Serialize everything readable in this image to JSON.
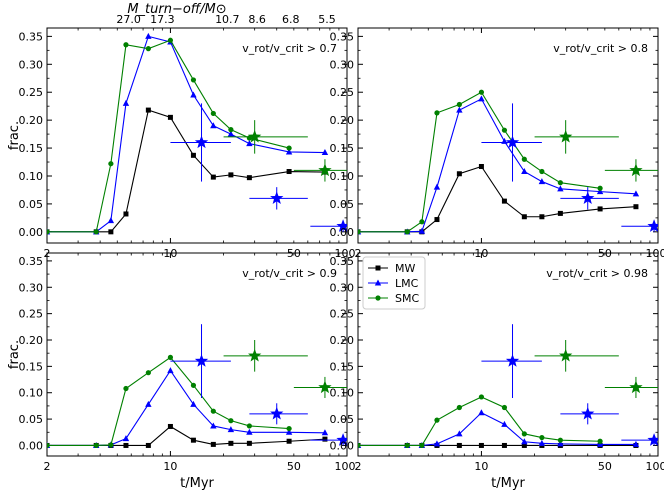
{
  "figure": {
    "top_axis_label": "M_turn−off/M⊙",
    "top_ticks": [
      {
        "t": 5.8,
        "label": "27.0"
      },
      {
        "t": 9.0,
        "label": "17.3"
      },
      {
        "t": 21.0,
        "label": "10.7"
      },
      {
        "t": 31.0,
        "label": "8.6"
      },
      {
        "t": 48.0,
        "label": "6.8"
      },
      {
        "t": 77.0,
        "label": "5.5"
      }
    ],
    "legend": [
      {
        "name": "MW",
        "color": "#000000",
        "marker": "square"
      },
      {
        "name": "LMC",
        "color": "#0000ff",
        "marker": "triangle"
      },
      {
        "name": "SMC",
        "color": "#008000",
        "marker": "circle"
      }
    ]
  },
  "chart_data": [
    {
      "type": "line",
      "panel": "top-left",
      "annotation": "v_rot/v_crit > 0.7",
      "xlabel": "",
      "ylabel": "frac.",
      "xscale": "log",
      "xlim": [
        2,
        100
      ],
      "ylim": [
        -0.02,
        0.365
      ],
      "xticks": [
        "2",
        "10",
        "50",
        "100"
      ],
      "yticks": [
        "0.00",
        "0.05",
        "0.10",
        "0.15",
        "0.20",
        "0.25",
        "0.30",
        "0.35"
      ],
      "series": [
        {
          "name": "MW",
          "color": "#000000",
          "marker": "square",
          "x": [
            2,
            3.8,
            4.6,
            5.6,
            7.5,
            10,
            13.5,
            17.5,
            22,
            28,
            47,
            75
          ],
          "y": [
            0,
            0,
            0,
            0.032,
            0.218,
            0.205,
            0.137,
            0.098,
            0.102,
            0.097,
            0.108,
            0.107
          ]
        },
        {
          "name": "LMC",
          "color": "#0000ff",
          "marker": "triangle",
          "x": [
            2,
            3.8,
            4.6,
            5.6,
            7.5,
            10,
            13.5,
            17.5,
            22,
            28,
            47,
            75
          ],
          "y": [
            0,
            0,
            0.02,
            0.23,
            0.35,
            0.34,
            0.245,
            0.19,
            0.175,
            0.158,
            0.143,
            0.142
          ]
        },
        {
          "name": "SMC",
          "color": "#008000",
          "marker": "circle",
          "x": [
            2,
            3.8,
            4.6,
            5.6,
            7.5,
            10,
            13.5,
            17.5,
            22,
            28,
            47
          ],
          "y": [
            0,
            0,
            0.122,
            0.335,
            0.328,
            0.343,
            0.272,
            0.212,
            0.183,
            0.168,
            0.15
          ]
        }
      ],
      "observations": [
        {
          "color": "#0000ff",
          "x": 15,
          "xerr": [
            10,
            22
          ],
          "y": 0.16,
          "yerr": [
            0.09,
            0.23
          ]
        },
        {
          "color": "#0000ff",
          "x": 40,
          "xerr": [
            28,
            60
          ],
          "y": 0.06,
          "yerr": [
            0.04,
            0.08
          ]
        },
        {
          "color": "#0000ff",
          "x": 95,
          "xerr": [
            62,
            100
          ],
          "y": 0.01,
          "yerr": [
            0.0,
            0.02
          ]
        },
        {
          "color": "#008000",
          "x": 30,
          "xerr": [
            20,
            60
          ],
          "y": 0.17,
          "yerr": [
            0.14,
            0.2
          ]
        },
        {
          "color": "#008000",
          "x": 75,
          "xerr": [
            50,
            100
          ],
          "y": 0.11,
          "yerr": [
            0.09,
            0.13
          ]
        }
      ]
    },
    {
      "type": "line",
      "panel": "top-right",
      "annotation": "v_rot/v_crit > 0.8",
      "xlabel": "",
      "ylabel": "",
      "xscale": "log",
      "xlim": [
        2,
        100
      ],
      "ylim": [
        -0.02,
        0.365
      ],
      "xticks": [
        "2",
        "10",
        "50",
        "100"
      ],
      "yticks": [
        "0.00",
        "0.05",
        "0.10",
        "0.15",
        "0.20",
        "0.25",
        "0.30",
        "0.35"
      ],
      "series": [
        {
          "name": "MW",
          "color": "#000000",
          "marker": "square",
          "x": [
            2,
            3.8,
            4.6,
            5.6,
            7.5,
            10,
            13.5,
            17.5,
            22,
            28,
            47,
            75
          ],
          "y": [
            0,
            0,
            0,
            0.022,
            0.104,
            0.117,
            0.055,
            0.027,
            0.027,
            0.033,
            0.041,
            0.045
          ]
        },
        {
          "name": "LMC",
          "color": "#0000ff",
          "marker": "triangle",
          "x": [
            2,
            3.8,
            4.6,
            5.6,
            7.5,
            10,
            13.5,
            17.5,
            22,
            28,
            47,
            75
          ],
          "y": [
            0,
            0,
            0.001,
            0.08,
            0.218,
            0.238,
            0.162,
            0.108,
            0.09,
            0.077,
            0.072,
            0.068
          ]
        },
        {
          "name": "SMC",
          "color": "#008000",
          "marker": "circle",
          "x": [
            2,
            3.8,
            4.6,
            5.6,
            7.5,
            10,
            13.5,
            17.5,
            22,
            28,
            47
          ],
          "y": [
            0,
            0,
            0.018,
            0.213,
            0.228,
            0.25,
            0.182,
            0.13,
            0.108,
            0.088,
            0.078
          ]
        }
      ],
      "observations": [
        {
          "color": "#0000ff",
          "x": 15,
          "xerr": [
            10,
            22
          ],
          "y": 0.16,
          "yerr": [
            0.09,
            0.23
          ]
        },
        {
          "color": "#0000ff",
          "x": 40,
          "xerr": [
            28,
            60
          ],
          "y": 0.06,
          "yerr": [
            0.04,
            0.08
          ]
        },
        {
          "color": "#0000ff",
          "x": 95,
          "xerr": [
            62,
            100
          ],
          "y": 0.01,
          "yerr": [
            0.0,
            0.02
          ]
        },
        {
          "color": "#008000",
          "x": 30,
          "xerr": [
            20,
            60
          ],
          "y": 0.17,
          "yerr": [
            0.14,
            0.2
          ]
        },
        {
          "color": "#008000",
          "x": 75,
          "xerr": [
            50,
            100
          ],
          "y": 0.11,
          "yerr": [
            0.09,
            0.13
          ]
        }
      ]
    },
    {
      "type": "line",
      "panel": "bottom-left",
      "annotation": "v_rot/v_crit > 0.9",
      "xlabel": "t/Myr",
      "ylabel": "frac.",
      "xscale": "log",
      "xlim": [
        2,
        100
      ],
      "ylim": [
        -0.02,
        0.365
      ],
      "xticks": [
        "2",
        "10",
        "50",
        "100"
      ],
      "yticks": [
        "0.00",
        "0.05",
        "0.10",
        "0.15",
        "0.20",
        "0.25",
        "0.30",
        "0.35"
      ],
      "series": [
        {
          "name": "MW",
          "color": "#000000",
          "marker": "square",
          "x": [
            2,
            3.8,
            4.6,
            5.6,
            7.5,
            10,
            13.5,
            17.5,
            22,
            28,
            47,
            75
          ],
          "y": [
            0,
            0,
            0,
            0,
            0,
            0.036,
            0.01,
            0.002,
            0.004,
            0.004,
            0.008,
            0.012
          ]
        },
        {
          "name": "LMC",
          "color": "#0000ff",
          "marker": "triangle",
          "x": [
            2,
            3.8,
            4.6,
            5.6,
            7.5,
            10,
            13.5,
            17.5,
            22,
            28,
            47,
            75
          ],
          "y": [
            0,
            0,
            0.001,
            0.013,
            0.078,
            0.142,
            0.078,
            0.037,
            0.03,
            0.025,
            0.025,
            0.024
          ]
        },
        {
          "name": "SMC",
          "color": "#008000",
          "marker": "circle",
          "x": [
            2,
            3.8,
            4.6,
            5.6,
            7.5,
            10,
            13.5,
            17.5,
            22,
            28,
            47
          ],
          "y": [
            0,
            0,
            0.001,
            0.108,
            0.138,
            0.167,
            0.114,
            0.065,
            0.047,
            0.037,
            0.032
          ]
        }
      ],
      "observations": [
        {
          "color": "#0000ff",
          "x": 15,
          "xerr": [
            10,
            22
          ],
          "y": 0.16,
          "yerr": [
            0.09,
            0.23
          ]
        },
        {
          "color": "#0000ff",
          "x": 40,
          "xerr": [
            28,
            60
          ],
          "y": 0.06,
          "yerr": [
            0.04,
            0.08
          ]
        },
        {
          "color": "#0000ff",
          "x": 95,
          "xerr": [
            62,
            100
          ],
          "y": 0.01,
          "yerr": [
            0.0,
            0.02
          ]
        },
        {
          "color": "#008000",
          "x": 30,
          "xerr": [
            20,
            60
          ],
          "y": 0.17,
          "yerr": [
            0.14,
            0.2
          ]
        },
        {
          "color": "#008000",
          "x": 75,
          "xerr": [
            50,
            100
          ],
          "y": 0.11,
          "yerr": [
            0.09,
            0.13
          ]
        }
      ]
    },
    {
      "type": "line",
      "panel": "bottom-right",
      "annotation": "v_rot/v_crit > 0.98",
      "xlabel": "t/Myr",
      "ylabel": "",
      "xscale": "log",
      "xlim": [
        2,
        100
      ],
      "ylim": [
        -0.02,
        0.365
      ],
      "xticks": [
        "2",
        "10",
        "50",
        "100"
      ],
      "yticks": [
        "0.00",
        "0.05",
        "0.10",
        "0.15",
        "0.20",
        "0.25",
        "0.30",
        "0.35"
      ],
      "series": [
        {
          "name": "MW",
          "color": "#000000",
          "marker": "square",
          "x": [
            2,
            3.8,
            4.6,
            5.6,
            7.5,
            10,
            13.5,
            17.5,
            22,
            28,
            47,
            75
          ],
          "y": [
            0,
            0,
            0,
            0,
            0,
            0,
            0,
            0,
            0,
            0,
            0,
            0
          ]
        },
        {
          "name": "LMC",
          "color": "#0000ff",
          "marker": "triangle",
          "x": [
            2,
            3.8,
            4.6,
            5.6,
            7.5,
            10,
            13.5,
            17.5,
            22,
            28,
            47,
            75
          ],
          "y": [
            0,
            0,
            0,
            0.003,
            0.022,
            0.062,
            0.04,
            0.007,
            0.004,
            0.003,
            0.002,
            0.002
          ]
        },
        {
          "name": "SMC",
          "color": "#008000",
          "marker": "circle",
          "x": [
            2,
            3.8,
            4.6,
            5.6,
            7.5,
            10,
            13.5,
            17.5,
            22,
            28,
            47
          ],
          "y": [
            0,
            0,
            0,
            0.048,
            0.072,
            0.092,
            0.072,
            0.022,
            0.015,
            0.01,
            0.008
          ]
        }
      ],
      "observations": [
        {
          "color": "#0000ff",
          "x": 15,
          "xerr": [
            10,
            22
          ],
          "y": 0.16,
          "yerr": [
            0.09,
            0.23
          ]
        },
        {
          "color": "#0000ff",
          "x": 40,
          "xerr": [
            28,
            60
          ],
          "y": 0.06,
          "yerr": [
            0.04,
            0.08
          ]
        },
        {
          "color": "#0000ff",
          "x": 95,
          "xerr": [
            62,
            100
          ],
          "y": 0.01,
          "yerr": [
            0.0,
            0.02
          ]
        },
        {
          "color": "#008000",
          "x": 30,
          "xerr": [
            20,
            60
          ],
          "y": 0.17,
          "yerr": [
            0.14,
            0.2
          ]
        },
        {
          "color": "#008000",
          "x": 75,
          "xerr": [
            50,
            100
          ],
          "y": 0.11,
          "yerr": [
            0.09,
            0.13
          ]
        }
      ]
    }
  ]
}
